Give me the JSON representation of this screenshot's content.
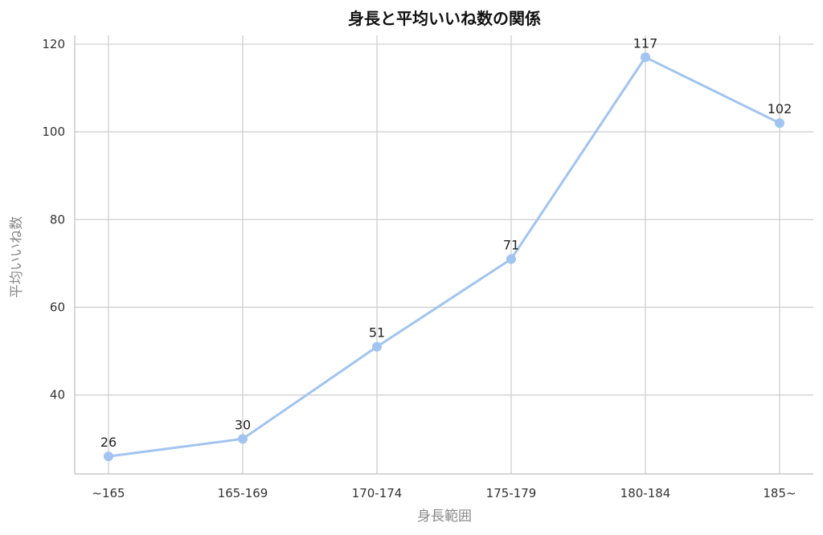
{
  "chart_data": {
    "type": "line",
    "title": "身長と平均いいね数の関係",
    "xlabel": "身長範囲",
    "ylabel": "平均いいね数",
    "categories": [
      "~165",
      "165-169",
      "170-174",
      "175-179",
      "180-184",
      "185~"
    ],
    "series": [
      {
        "values": [
          26,
          30,
          51,
          71,
          117,
          102
        ],
        "color": "#a1c4f0"
      }
    ],
    "data_labels": [
      "26",
      "30",
      "51",
      "71",
      "117",
      "102"
    ],
    "ylim": [
      22,
      122
    ],
    "yticks": [
      40,
      60,
      80,
      100,
      120
    ],
    "ytick_labels": [
      "40",
      "60",
      "80",
      "100",
      "120"
    ],
    "grid": true,
    "legend": "none"
  }
}
